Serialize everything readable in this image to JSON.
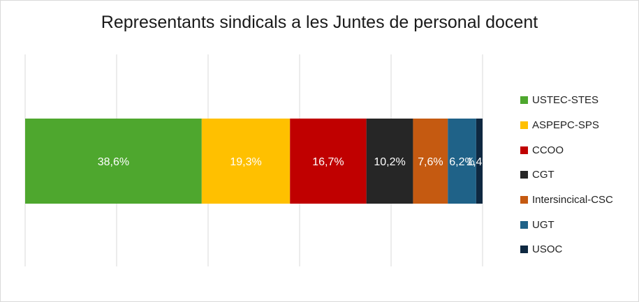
{
  "chart_data": {
    "type": "bar",
    "orientation": "horizontal-stacked-100",
    "title": "Representants sindicals a les Juntes de personal docent",
    "series": [
      {
        "name": "USTEC-STES",
        "value": 38.6,
        "label": "38,6%",
        "color": "#4ea72e"
      },
      {
        "name": "ASPEPC-SPS",
        "value": 19.3,
        "label": "19,3%",
        "color": "#ffc000"
      },
      {
        "name": "CCOO",
        "value": 16.7,
        "label": "16,7%",
        "color": "#c00000"
      },
      {
        "name": "CGT",
        "value": 10.2,
        "label": "10,2%",
        "color": "#262626"
      },
      {
        "name": "Intersincical-CSC",
        "value": 7.6,
        "label": "7,6%",
        "color": "#c55a11"
      },
      {
        "name": "UGT",
        "value": 6.2,
        "label": "6,2%",
        "color": "#1f6288"
      },
      {
        "name": "USOC",
        "value": 1.4,
        "label": "1,4%",
        "color": "#0e2841"
      }
    ],
    "xlim": [
      0,
      100
    ],
    "gridlines": [
      0,
      20,
      40,
      60,
      80,
      100
    ],
    "grid": true,
    "legend_position": "right",
    "data_label_color": "#ffffff"
  }
}
